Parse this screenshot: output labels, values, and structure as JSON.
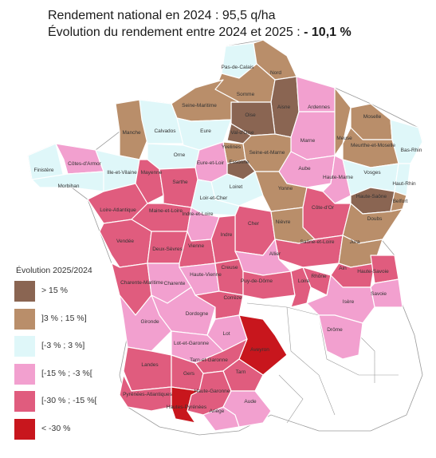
{
  "title": {
    "line1": "Rendement national en 2024 : 95,5 q/ha",
    "line2_prefix": "Évolution du rendement entre 2024 et 2025 :",
    "line2_value": "- 10,1 %"
  },
  "legend": {
    "title": "Évolution 2025/2024",
    "items": [
      {
        "label": "> 15 %",
        "color": "#8a6552"
      },
      {
        "label": "]3 % ; 15 %]",
        "color": "#b98e6a"
      },
      {
        "label": "[-3 % ; 3 %]",
        "color": "#dff7f9"
      },
      {
        "label": "[-15 % ; -3 %[",
        "color": "#f2a0cf"
      },
      {
        "label": "[-30 % ; -15 %[",
        "color": "#e05c7e"
      },
      {
        "label": "< -30 %",
        "color": "#c8161d"
      }
    ]
  },
  "departments": [
    {
      "name": "Pas-de-Calais",
      "cls": "c3"
    },
    {
      "name": "Nord",
      "cls": "c2"
    },
    {
      "name": "Somme",
      "cls": "c2"
    },
    {
      "name": "Aisne",
      "cls": "c1"
    },
    {
      "name": "Oise",
      "cls": "c1"
    },
    {
      "name": "Seine-Maritime",
      "cls": "c2"
    },
    {
      "name": "Ardennes",
      "cls": "c4"
    },
    {
      "name": "Manche",
      "cls": "c2"
    },
    {
      "name": "Calvados",
      "cls": "c3"
    },
    {
      "name": "Eure",
      "cls": "c3"
    },
    {
      "name": "Val-d'Oise",
      "cls": "c1"
    },
    {
      "name": "Marne",
      "cls": "c4"
    },
    {
      "name": "Meuse",
      "cls": "c2"
    },
    {
      "name": "Moselle",
      "cls": "c2"
    },
    {
      "name": "Bas-Rhin",
      "cls": "c3"
    },
    {
      "name": "Meurthe-et-Moselle",
      "cls": "c2"
    },
    {
      "name": "Orne",
      "cls": "c3"
    },
    {
      "name": "Yvelines",
      "cls": "c2"
    },
    {
      "name": "Seine-et-Marne",
      "cls": "c2"
    },
    {
      "name": "Essonne",
      "cls": "c1"
    },
    {
      "name": "Finistère",
      "cls": "c3"
    },
    {
      "name": "Côtes-d'Armor",
      "cls": "c4"
    },
    {
      "name": "Eure-et-Loir",
      "cls": "c4"
    },
    {
      "name": "Aube",
      "cls": "c4"
    },
    {
      "name": "Haute-Marne",
      "cls": "c4"
    },
    {
      "name": "Vosges",
      "cls": "c3"
    },
    {
      "name": "Haut-Rhin",
      "cls": "c3"
    },
    {
      "name": "Morbihan",
      "cls": "c3"
    },
    {
      "name": "Ille-et-Vilaine",
      "cls": "c3"
    },
    {
      "name": "Mayenne",
      "cls": "c5"
    },
    {
      "name": "Sarthe",
      "cls": "c5"
    },
    {
      "name": "Loiret",
      "cls": "c3"
    },
    {
      "name": "Yonne",
      "cls": "c2"
    },
    {
      "name": "Haute-Saône",
      "cls": "c1"
    },
    {
      "name": "Belfort",
      "cls": "c2"
    },
    {
      "name": "Loir-et-Cher",
      "cls": "c3"
    },
    {
      "name": "Loire-Atlantique",
      "cls": "c5"
    },
    {
      "name": "Maine-et-Loire",
      "cls": "c5"
    },
    {
      "name": "Indre-et-Loire",
      "cls": "c4"
    },
    {
      "name": "Côte-d'Or",
      "cls": "c5"
    },
    {
      "name": "Doubs",
      "cls": "c2"
    },
    {
      "name": "Cher",
      "cls": "c5"
    },
    {
      "name": "Nièvre",
      "cls": "c2"
    },
    {
      "name": "Vendée",
      "cls": "c5"
    },
    {
      "name": "Deux-Sèvres",
      "cls": "c5"
    },
    {
      "name": "Vienne",
      "cls": "c5"
    },
    {
      "name": "Indre",
      "cls": "c5"
    },
    {
      "name": "Saône-et-Loire",
      "cls": "c5"
    },
    {
      "name": "Jura",
      "cls": "c2"
    },
    {
      "name": "Allier",
      "cls": "c4"
    },
    {
      "name": "Ain",
      "cls": "c5"
    },
    {
      "name": "Haute-Savoie",
      "cls": "c5"
    },
    {
      "name": "Charente-Maritime",
      "cls": "c5"
    },
    {
      "name": "Charente",
      "cls": "c4"
    },
    {
      "name": "Haute-Vienne",
      "cls": "c4"
    },
    {
      "name": "Creuse",
      "cls": "c5"
    },
    {
      "name": "Puy-de-Dôme",
      "cls": "c5"
    },
    {
      "name": "Loire",
      "cls": "c5"
    },
    {
      "name": "Rhône",
      "cls": "c5"
    },
    {
      "name": "Savoie",
      "cls": "c4"
    },
    {
      "name": "Isère",
      "cls": "c4"
    },
    {
      "name": "Dordogne",
      "cls": "c4"
    },
    {
      "name": "Corrèze",
      "cls": "c5"
    },
    {
      "name": "Gironde",
      "cls": "c4"
    },
    {
      "name": "Drôme",
      "cls": "c4"
    },
    {
      "name": "Lot",
      "cls": "c4"
    },
    {
      "name": "Lot-et-Garonne",
      "cls": "c4"
    },
    {
      "name": "Aveyron",
      "cls": "c6"
    },
    {
      "name": "Landes",
      "cls": "c5"
    },
    {
      "name": "Tarn-et-Garonne",
      "cls": "c5"
    },
    {
      "name": "Gers",
      "cls": "c5"
    },
    {
      "name": "Tarn",
      "cls": "c5"
    },
    {
      "name": "Pyrénées-Atlantiques",
      "cls": "c5"
    },
    {
      "name": "Haute-Garonne",
      "cls": "c5"
    },
    {
      "name": "Hautes-Pyrénées",
      "cls": "c6"
    },
    {
      "name": "Ariège",
      "cls": "c4"
    },
    {
      "name": "Aude",
      "cls": "c4"
    }
  ]
}
